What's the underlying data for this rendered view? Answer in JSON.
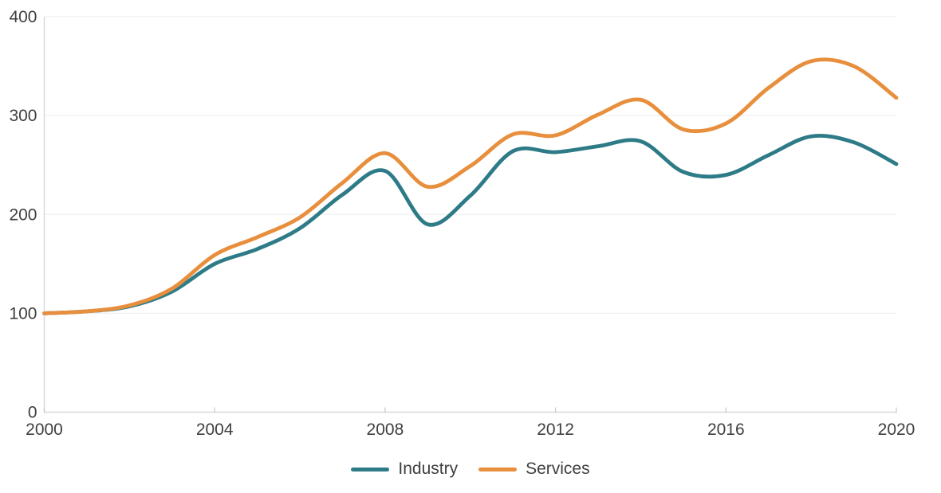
{
  "chart_data": {
    "type": "line",
    "title": "",
    "xlabel": "",
    "ylabel": "",
    "x": [
      2000,
      2001,
      2002,
      2003,
      2004,
      2005,
      2006,
      2007,
      2008,
      2009,
      2010,
      2011,
      2012,
      2013,
      2014,
      2015,
      2016,
      2017,
      2018,
      2019,
      2020
    ],
    "series": [
      {
        "name": "Industry",
        "color": "#2e7b88",
        "values": [
          100,
          102,
          107,
          122,
          150,
          165,
          186,
          220,
          244,
          190,
          219,
          264,
          263,
          269,
          274,
          243,
          240,
          260,
          279,
          273,
          251
        ]
      },
      {
        "name": "Services",
        "color": "#e88f3d",
        "values": [
          100,
          102,
          108,
          125,
          159,
          177,
          197,
          232,
          262,
          228,
          249,
          281,
          280,
          301,
          316,
          286,
          292,
          328,
          355,
          350,
          318
        ]
      }
    ],
    "xlim": [
      2000,
      2020
    ],
    "ylim": [
      0,
      400
    ],
    "x_ticks": [
      2000,
      2004,
      2008,
      2012,
      2016,
      2020
    ],
    "y_ticks": [
      0,
      100,
      200,
      300,
      400
    ],
    "grid": "horizontal",
    "smooth": true,
    "legend_position": "bottom-center"
  },
  "legend": {
    "items": [
      {
        "label": "Industry",
        "color": "#2e7b88"
      },
      {
        "label": "Services",
        "color": "#e88f3d"
      }
    ]
  },
  "colors": {
    "background": "#ffffff",
    "axis_line": "#d9d9d9",
    "tick_mark": "#c9c9c9",
    "gridline": "#f2f2f2",
    "tick_label": "#3f3f3f"
  }
}
